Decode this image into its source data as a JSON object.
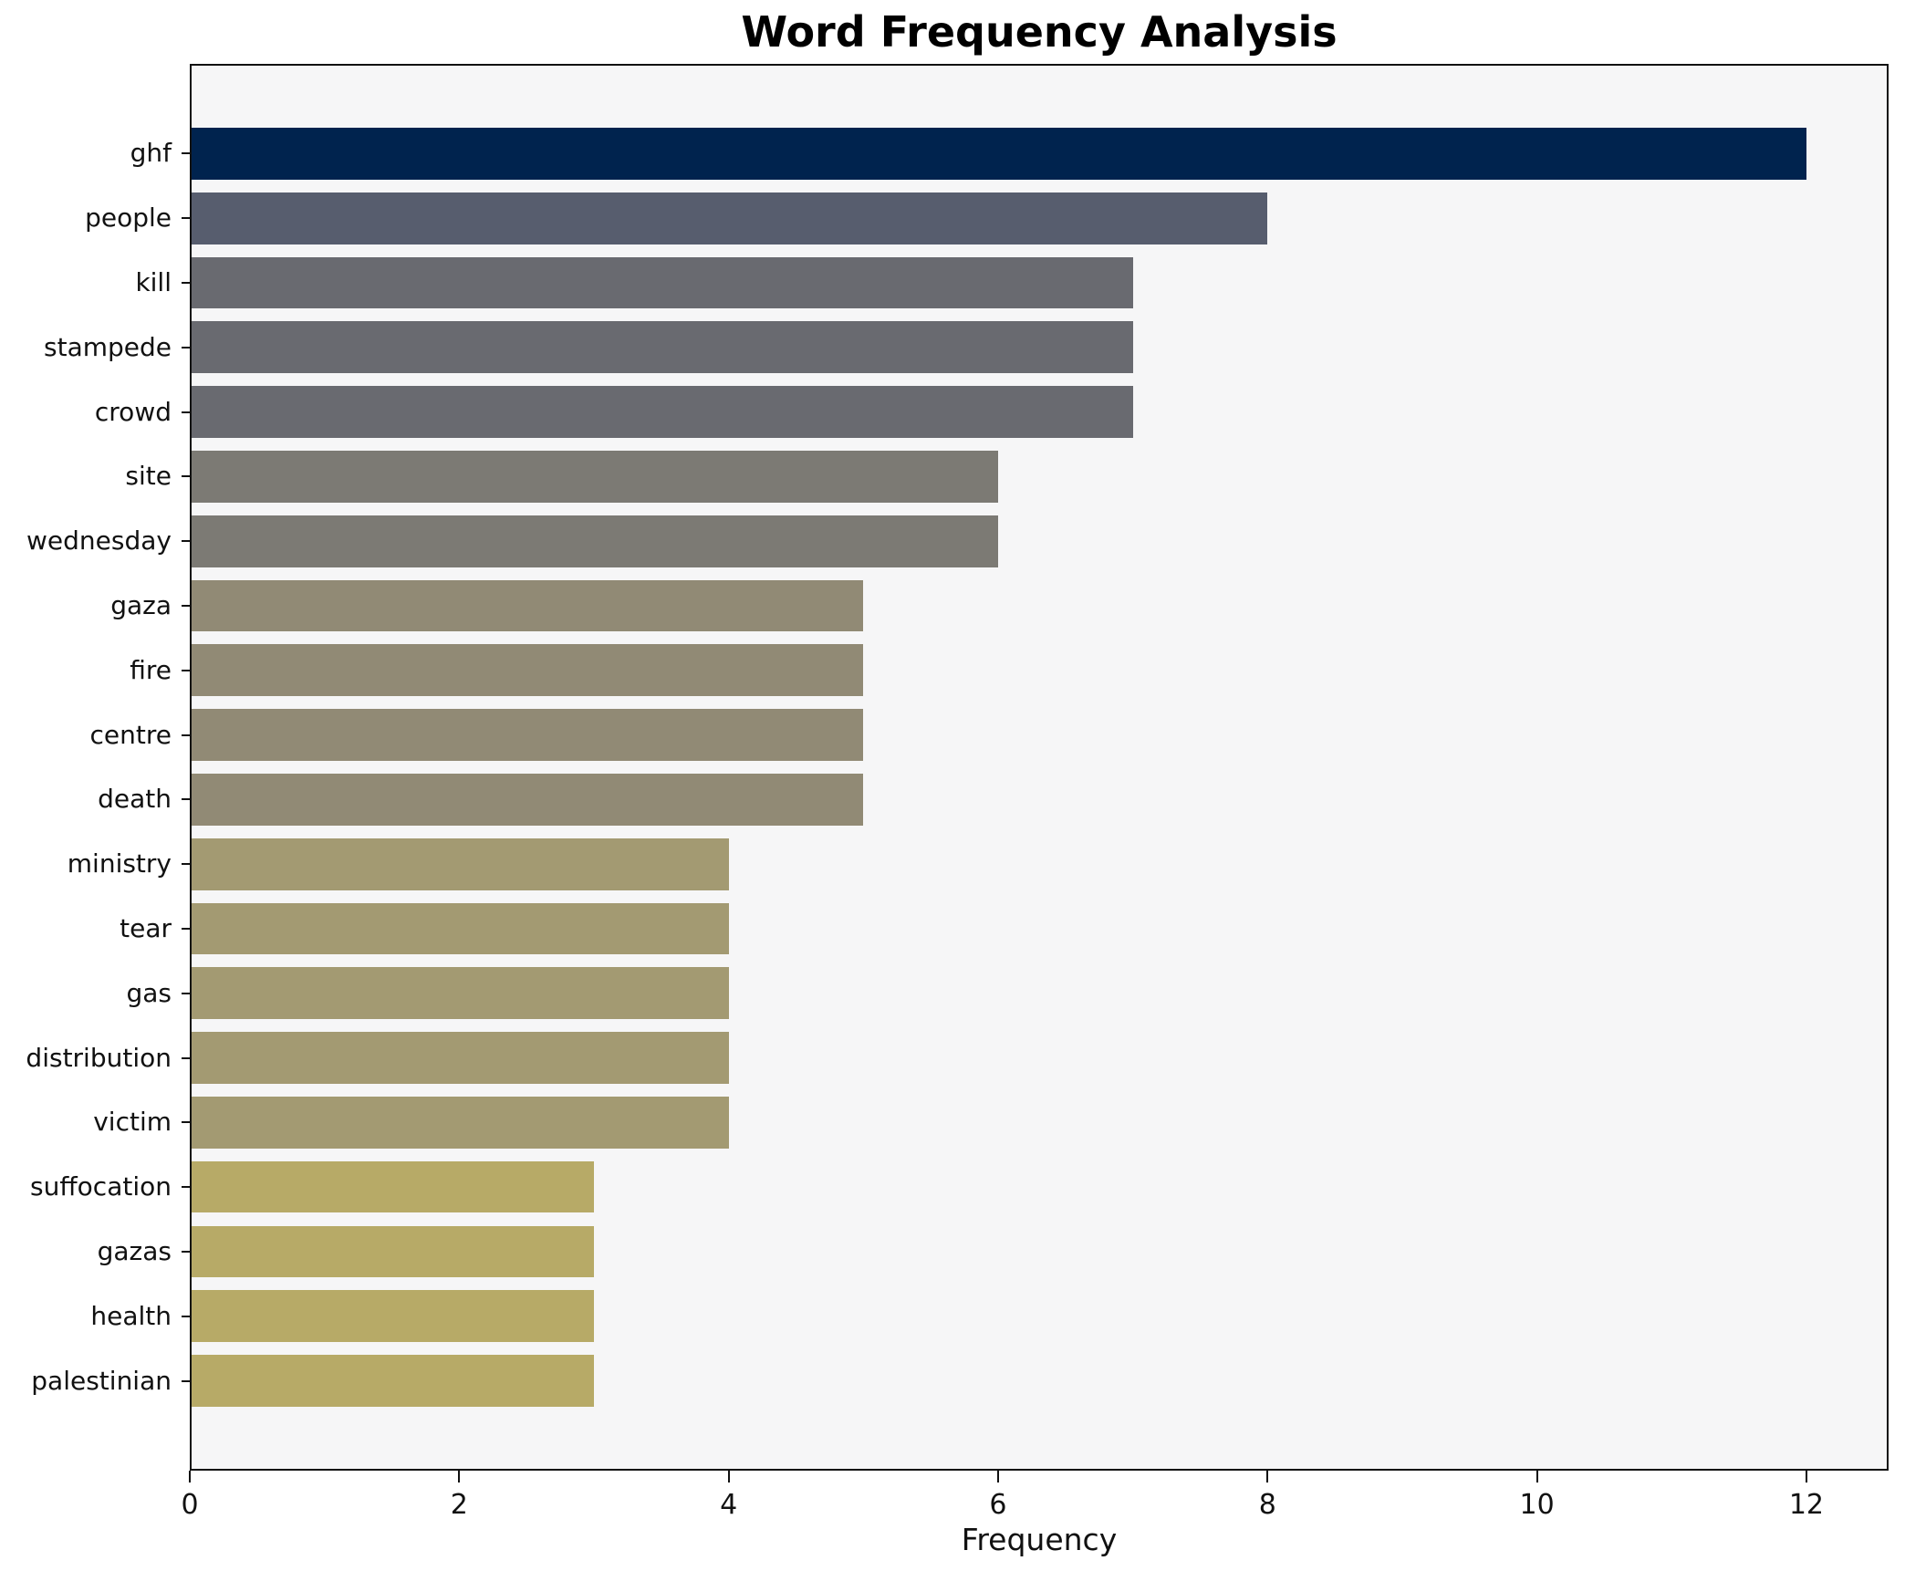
{
  "figure": {
    "page_bg": "#ffffff",
    "plot_bg": "#f6f6f7",
    "spine_color": "#111111"
  },
  "chart_data": {
    "type": "bar",
    "orientation": "horizontal",
    "title": "Word Frequency Analysis",
    "xlabel": "Frequency",
    "ylabel": "",
    "categories": [
      "ghf",
      "people",
      "kill",
      "stampede",
      "crowd",
      "site",
      "wednesday",
      "gaza",
      "fire",
      "centre",
      "death",
      "ministry",
      "tear",
      "gas",
      "distribution",
      "victim",
      "suffocation",
      "gazas",
      "health",
      "palestinian"
    ],
    "values": [
      12,
      8,
      7,
      7,
      7,
      6,
      6,
      5,
      5,
      5,
      5,
      4,
      4,
      4,
      4,
      4,
      3,
      3,
      3,
      3
    ],
    "bar_colors": [
      "#00234e",
      "#575d6e",
      "#696a70",
      "#696a70",
      "#696a70",
      "#7c7a74",
      "#7c7a74",
      "#918a75",
      "#918a75",
      "#918a75",
      "#918a75",
      "#a39a72",
      "#a39a72",
      "#a39a72",
      "#a39a72",
      "#a39a72",
      "#b7aa67",
      "#b7aa67",
      "#b7aa67",
      "#b7aa67"
    ],
    "x_ticks": [
      0,
      2,
      4,
      6,
      8,
      10,
      12
    ],
    "xlim": [
      0,
      12.61
    ],
    "grid": false,
    "legend": null
  }
}
